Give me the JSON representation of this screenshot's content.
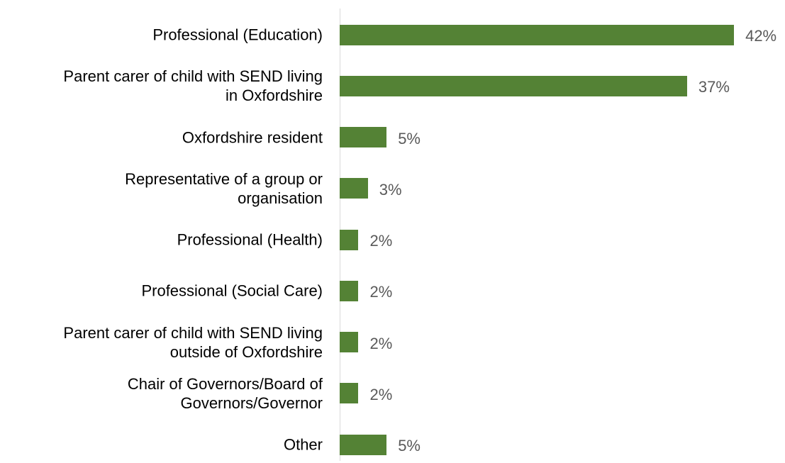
{
  "chart_data": {
    "type": "bar",
    "orientation": "horizontal",
    "categories": [
      "Professional (Education)",
      "Parent carer of child with SEND living\nin Oxfordshire",
      "Oxfordshire resident",
      "Representative of a group or\norganisation",
      "Professional (Health)",
      "Professional (Social Care)",
      "Parent carer of child with SEND living\noutside of Oxfordshire",
      "Chair of Governors/Board of\nGovernors/Governor",
      "Other"
    ],
    "values": [
      42,
      37,
      5,
      3,
      2,
      2,
      2,
      2,
      5
    ],
    "value_labels": [
      "42%",
      "37%",
      "5%",
      "3%",
      "2%",
      "2%",
      "2%",
      "2%",
      "5%"
    ],
    "color": "#548235"
  }
}
